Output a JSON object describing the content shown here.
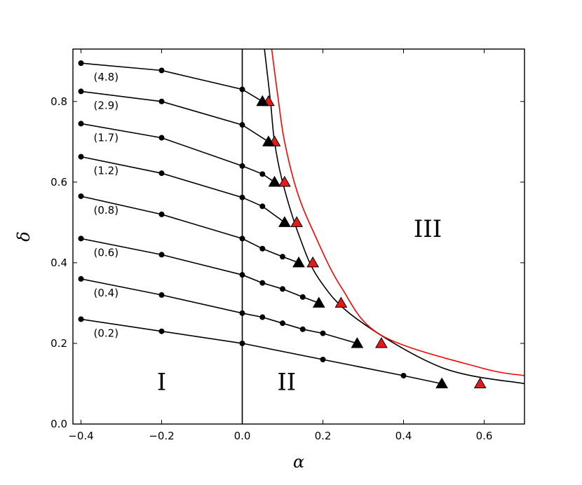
{
  "chart_data": {
    "type": "line",
    "title": "",
    "xlabel": "α",
    "ylabel": "δ",
    "xlim": [
      -0.42,
      0.7
    ],
    "ylim": [
      0.0,
      0.93
    ],
    "xticks": [
      -0.4,
      -0.2,
      0.0,
      0.2,
      0.4,
      0.6
    ],
    "xtick_labels": [
      "−0.4",
      "−0.2",
      "0.0",
      "0.2",
      "0.4",
      "0.6"
    ],
    "yticks": [
      0.0,
      0.2,
      0.4,
      0.6,
      0.8
    ],
    "ytick_labels": [
      "0.0",
      "0.2",
      "0.4",
      "0.6",
      "0.8"
    ],
    "grid": false,
    "vertical_line_x": 0.0,
    "regions": [
      {
        "label": "I",
        "x": -0.2,
        "y": 0.1
      },
      {
        "label": "II",
        "x": 0.11,
        "y": 0.1
      },
      {
        "label": "III",
        "x": 0.46,
        "y": 0.48
      }
    ],
    "series": [
      {
        "name": "(0.2)",
        "x": [
          -0.4,
          -0.2,
          0.0,
          0.2,
          0.4
        ],
        "y": [
          0.26,
          0.23,
          0.2,
          0.16,
          0.12
        ],
        "tri_black": [
          0.495,
          0.1
        ],
        "tri_red": [
          0.59,
          0.1
        ]
      },
      {
        "name": "(0.4)",
        "x": [
          -0.4,
          -0.2,
          0.0,
          0.05,
          0.1,
          0.15,
          0.2
        ],
        "y": [
          0.36,
          0.32,
          0.275,
          0.265,
          0.25,
          0.235,
          0.225
        ],
        "tri_black": [
          0.285,
          0.2
        ],
        "tri_red": [
          0.345,
          0.2
        ]
      },
      {
        "name": "(0.6)",
        "x": [
          -0.4,
          -0.2,
          0.0,
          0.05,
          0.1,
          0.15
        ],
        "y": [
          0.46,
          0.42,
          0.37,
          0.35,
          0.335,
          0.315
        ],
        "tri_black": [
          0.19,
          0.3
        ],
        "tri_red": [
          0.245,
          0.3
        ]
      },
      {
        "name": "(0.8)",
        "x": [
          -0.4,
          -0.2,
          0.0,
          0.05,
          0.1
        ],
        "y": [
          0.565,
          0.52,
          0.46,
          0.435,
          0.415
        ],
        "tri_black": [
          0.14,
          0.4
        ],
        "tri_red": [
          0.175,
          0.4
        ]
      },
      {
        "name": "(1.2)",
        "x": [
          -0.4,
          -0.2,
          0.0,
          0.05
        ],
        "y": [
          0.663,
          0.622,
          0.562,
          0.54
        ],
        "tri_black": [
          0.105,
          0.5
        ],
        "tri_red": [
          0.135,
          0.5
        ]
      },
      {
        "name": "(1.7)",
        "x": [
          -0.4,
          -0.2,
          0.0,
          0.05
        ],
        "y": [
          0.745,
          0.71,
          0.64,
          0.62
        ],
        "tri_black": [
          0.08,
          0.6
        ],
        "tri_red": [
          0.105,
          0.6
        ]
      },
      {
        "name": "(2.9)",
        "x": [
          -0.4,
          -0.2,
          0.0
        ],
        "y": [
          0.825,
          0.8,
          0.742
        ],
        "tri_black": [
          0.065,
          0.7
        ],
        "tri_red": [
          0.08,
          0.7
        ]
      },
      {
        "name": "(4.8)",
        "x": [
          -0.4,
          -0.2,
          0.0
        ],
        "y": [
          0.895,
          0.877,
          0.83
        ],
        "tri_black": [
          0.05,
          0.8
        ],
        "tri_red": [
          0.065,
          0.8
        ]
      }
    ],
    "boundary_black": {
      "x": [
        0.055,
        0.07,
        0.08,
        0.1,
        0.14,
        0.19,
        0.285,
        0.495,
        0.7
      ],
      "y": [
        0.93,
        0.8,
        0.7,
        0.6,
        0.47,
        0.36,
        0.26,
        0.14,
        0.1
      ]
    },
    "boundary_red": {
      "x": [
        0.073,
        0.09,
        0.105,
        0.135,
        0.175,
        0.245,
        0.345,
        0.59,
        0.7
      ],
      "y": [
        0.93,
        0.8,
        0.7,
        0.58,
        0.48,
        0.34,
        0.22,
        0.14,
        0.12
      ]
    },
    "colors": {
      "black": "#000000",
      "red": "#ff0000",
      "red_marker": "#e31a1c"
    }
  }
}
